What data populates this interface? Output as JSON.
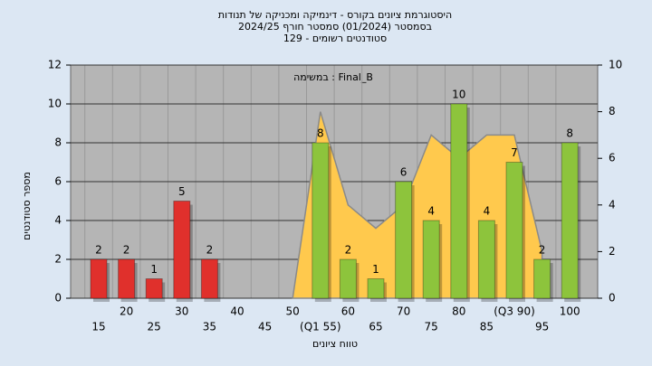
{
  "chart_data": {
    "type": "bar",
    "title": "היסטוגרמת ציונים בקורס - דינמיקה ומכניקה של תנודות",
    "subtitle": "בסמסטר  (01/2024)  סמסטר חורף 2024/25",
    "subtitle2": "סטודנטים רשומים - 129",
    "annotation": "במשימה : Final_B",
    "y_label": "מספר סטודנטים",
    "x_label": "טווח ציונים",
    "categories": [
      "15",
      "20",
      "25",
      "30",
      "35",
      "40",
      "45",
      "50",
      "(Q1 55)",
      "60",
      "65",
      "70",
      "75",
      "80",
      "85",
      "(Q3 90)",
      "95",
      "100"
    ],
    "values": [
      2,
      2,
      1,
      5,
      2,
      0,
      0,
      0,
      8,
      2,
      1,
      6,
      4,
      10,
      4,
      7,
      2,
      8
    ],
    "colors": [
      "#e0302c",
      "#e0302c",
      "#e0302c",
      "#e0302c",
      "#e0302c",
      "#e0302c",
      "#e0302c",
      "#e0302c",
      "#8dc43c",
      "#8dc43c",
      "#8dc43c",
      "#8dc43c",
      "#8dc43c",
      "#8dc43c",
      "#8dc43c",
      "#8dc43c",
      "#8dc43c",
      "#8dc43c"
    ],
    "area": {
      "color": "#ffc94d",
      "axis": "y2",
      "values": [
        null,
        null,
        null,
        null,
        null,
        null,
        null,
        0,
        8,
        4,
        3,
        4,
        7,
        6,
        7,
        7,
        2,
        null
      ]
    },
    "ylim": [
      0,
      12
    ],
    "yticks": [
      0,
      2,
      4,
      6,
      8,
      10,
      12
    ],
    "y2lim": [
      0,
      10
    ],
    "y2ticks": [
      0,
      2,
      4,
      6,
      8,
      10
    ],
    "grid": true
  }
}
